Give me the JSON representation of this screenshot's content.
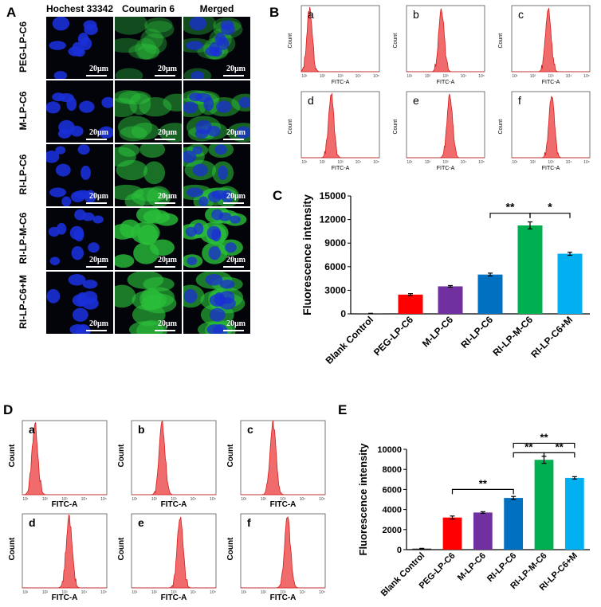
{
  "panel_labels": {
    "A": "A",
    "B": "B",
    "C": "C",
    "D": "D",
    "E": "E"
  },
  "panel_a": {
    "columns": [
      "Hochest 33342",
      "Coumarin 6",
      "Merged"
    ],
    "rows": [
      "PEG-LP-C6",
      "M-LP-C6",
      "RI-LP-C6",
      "RI-LP-M-C6",
      "RI-LP-C6+M"
    ],
    "scale_bar": "20μm",
    "colors": {
      "background": "#03030a",
      "nucleus": "#1a2fd6",
      "cytoplasm": "#2bbf3a"
    },
    "green_intensity": [
      0.25,
      0.45,
      0.6,
      1.0,
      0.7
    ]
  },
  "panel_b": {
    "subplots": [
      {
        "letter": "a",
        "peak": 1.0
      },
      {
        "letter": "b",
        "peak": 2.6
      },
      {
        "letter": "c",
        "peak": 2.7
      },
      {
        "letter": "d",
        "peak": 2.3
      },
      {
        "letter": "e",
        "peak": 3.1
      },
      {
        "letter": "f",
        "peak": 2.9
      }
    ],
    "ylabel": "Count",
    "xlabel": "FITC-A",
    "ticks": [
      "10¹",
      "10²",
      "10³",
      "10⁴",
      "10⁵"
    ],
    "fill_color": "#f06b6b",
    "line_color": "#d81c1c"
  },
  "panel_d": {
    "subplots": [
      {
        "letter": "a",
        "peak": 1.2
      },
      {
        "letter": "b",
        "peak": 2.2
      },
      {
        "letter": "c",
        "peak": 2.3
      },
      {
        "letter": "d",
        "peak": 3.1
      },
      {
        "letter": "e",
        "peak": 3.2
      },
      {
        "letter": "f",
        "peak": 3.1
      }
    ],
    "ylabel": "Count",
    "xlabel": "FITC-A",
    "ticks": [
      "10¹",
      "10²",
      "10³",
      "10⁴",
      "10⁵"
    ],
    "fill_color": "#f06b6b",
    "line_color": "#d81c1c"
  },
  "chart_data": [
    {
      "type": "bar",
      "panel": "C",
      "categories": [
        "Blank Control",
        "PEG-LP-C6",
        "M-LP-C6",
        "RI-LP-C6",
        "RI-LP-M-C6",
        "RI-LP-C6+M"
      ],
      "values": [
        50,
        2450,
        3500,
        5000,
        11250,
        7650
      ],
      "errors": [
        20,
        120,
        100,
        180,
        450,
        200
      ],
      "colors": [
        "#1a1a1a",
        "#ff0000",
        "#7030a0",
        "#0070c0",
        "#00b050",
        "#00b0f0"
      ],
      "ylabel": "Fluorescence intensity",
      "ylim": [
        0,
        15000
      ],
      "yticks": [
        0,
        3000,
        6000,
        9000,
        12000,
        15000
      ],
      "significance": [
        {
          "from": 3,
          "to": 4,
          "label": "**",
          "level": 12800
        },
        {
          "from": 4,
          "to": 5,
          "label": "*",
          "level": 12800
        }
      ]
    },
    {
      "type": "bar",
      "panel": "E",
      "categories": [
        "Blank Control",
        "PEG-LP-C6",
        "M-LP-C6",
        "RI-LP-C6",
        "RI-LP-M-C6",
        "RI-LP-C6+M"
      ],
      "values": [
        100,
        3200,
        3700,
        5150,
        8950,
        7150
      ],
      "errors": [
        30,
        150,
        80,
        150,
        350,
        120
      ],
      "colors": [
        "#1a1a1a",
        "#ff0000",
        "#7030a0",
        "#0070c0",
        "#00b050",
        "#00b0f0"
      ],
      "ylabel": "Fluorescence intensity",
      "ylim": [
        0,
        10000
      ],
      "yticks": [
        0,
        2000,
        4000,
        6000,
        8000,
        10000
      ],
      "significance": [
        {
          "from": 1,
          "to": 3,
          "label": "**",
          "level": 6000
        },
        {
          "from": 3,
          "to": 4,
          "label": "**",
          "level": 9650
        },
        {
          "from": 4,
          "to": 5,
          "label": "**",
          "level": 9650
        },
        {
          "from": 3,
          "to": 5,
          "label": "**",
          "level": 10600
        }
      ]
    }
  ]
}
